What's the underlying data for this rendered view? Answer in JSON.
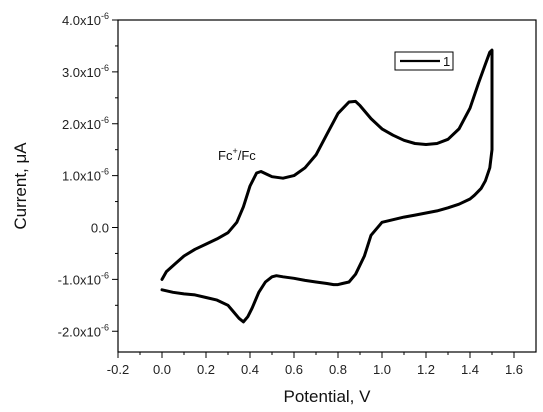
{
  "chart_data": {
    "type": "line",
    "title": "",
    "xlabel": "Potential, V",
    "ylabel": "Current, μA",
    "xlim": [
      -0.2,
      1.7
    ],
    "ylim": [
      -2.4e-06,
      4e-06
    ],
    "x_ticks": [
      -0.2,
      0.0,
      0.2,
      0.4,
      0.6,
      0.8,
      1.0,
      1.2,
      1.4,
      1.6
    ],
    "x_tick_labels": [
      "-0.2",
      "0.0",
      "0.2",
      "0.4",
      "0.6",
      "0.8",
      "1.0",
      "1.2",
      "1.4",
      "1.6"
    ],
    "y_ticks": [
      {
        "value": -2e-06,
        "mant": "-2.0x10",
        "exp": "-6"
      },
      {
        "value": -1e-06,
        "mant": "-1.0x10",
        "exp": "-6"
      },
      {
        "value": 0.0,
        "mant": "0.0",
        "exp": ""
      },
      {
        "value": 1e-06,
        "mant": "1.0x10",
        "exp": "-6"
      },
      {
        "value": 2e-06,
        "mant": "2.0x10",
        "exp": "-6"
      },
      {
        "value": 3e-06,
        "mant": "3.0x10",
        "exp": "-6"
      },
      {
        "value": 4e-06,
        "mant": "4.0x10",
        "exp": "-6"
      }
    ],
    "grid": false,
    "legend": {
      "position": "top-right",
      "entries": [
        "1"
      ]
    },
    "annotation": {
      "text": "Fc",
      "sup": "+",
      "rest": "/Fc",
      "x": 0.3,
      "y": 1.4e-06
    },
    "line_color": "#000000",
    "series": [
      {
        "name": "1",
        "x": [
          0.0,
          0.02,
          0.06,
          0.1,
          0.15,
          0.2,
          0.25,
          0.3,
          0.34,
          0.37,
          0.4,
          0.43,
          0.45,
          0.48,
          0.5,
          0.55,
          0.6,
          0.65,
          0.7,
          0.75,
          0.8,
          0.85,
          0.88,
          0.9,
          0.95,
          1.0,
          1.05,
          1.1,
          1.15,
          1.2,
          1.25,
          1.3,
          1.35,
          1.4,
          1.44,
          1.47,
          1.49,
          1.5,
          1.5,
          1.49,
          1.47,
          1.45,
          1.42,
          1.4,
          1.35,
          1.3,
          1.25,
          1.2,
          1.15,
          1.1,
          1.05,
          1.0,
          0.95,
          0.92,
          0.88,
          0.85,
          0.82,
          0.8,
          0.78,
          0.75,
          0.7,
          0.65,
          0.6,
          0.55,
          0.52,
          0.5,
          0.47,
          0.44,
          0.41,
          0.39,
          0.37,
          0.35,
          0.32,
          0.3,
          0.25,
          0.2,
          0.15,
          0.1,
          0.05,
          0.02,
          0.0
        ],
        "y": [
          -1e-06,
          -8.5e-07,
          -7e-07,
          -5.5e-07,
          -4.2e-07,
          -3.2e-07,
          -2.2e-07,
          -1e-07,
          1e-07,
          4e-07,
          8e-07,
          1.05e-06,
          1.08e-06,
          1.02e-06,
          9.8e-07,
          9.5e-07,
          1e-06,
          1.15e-06,
          1.4e-06,
          1.8e-06,
          2.2e-06,
          2.42e-06,
          2.43e-06,
          2.35e-06,
          2.1e-06,
          1.9e-06,
          1.78e-06,
          1.68e-06,
          1.62e-06,
          1.6e-06,
          1.62e-06,
          1.7e-06,
          1.9e-06,
          2.3e-06,
          2.8e-06,
          3.15e-06,
          3.38e-06,
          3.42e-06,
          1.5e-06,
          1.15e-06,
          9e-07,
          7.5e-07,
          6.2e-07,
          5.5e-07,
          4.5e-07,
          3.8e-07,
          3.2e-07,
          2.8e-07,
          2.4e-07,
          2e-07,
          1.5e-07,
          1e-07,
          -1.5e-07,
          -5.5e-07,
          -9e-07,
          -1.05e-06,
          -1.08e-06,
          -1.1e-06,
          -1.1e-06,
          -1.08e-06,
          -1.05e-06,
          -1.02e-06,
          -9.8e-07,
          -9.5e-07,
          -9.3e-07,
          -9.5e-07,
          -1.05e-06,
          -1.25e-06,
          -1.55e-06,
          -1.72e-06,
          -1.82e-06,
          -1.75e-06,
          -1.6e-06,
          -1.5e-06,
          -1.4e-06,
          -1.35e-06,
          -1.3e-06,
          -1.28e-06,
          -1.25e-06,
          -1.22e-06,
          -1.2e-06
        ]
      }
    ]
  }
}
